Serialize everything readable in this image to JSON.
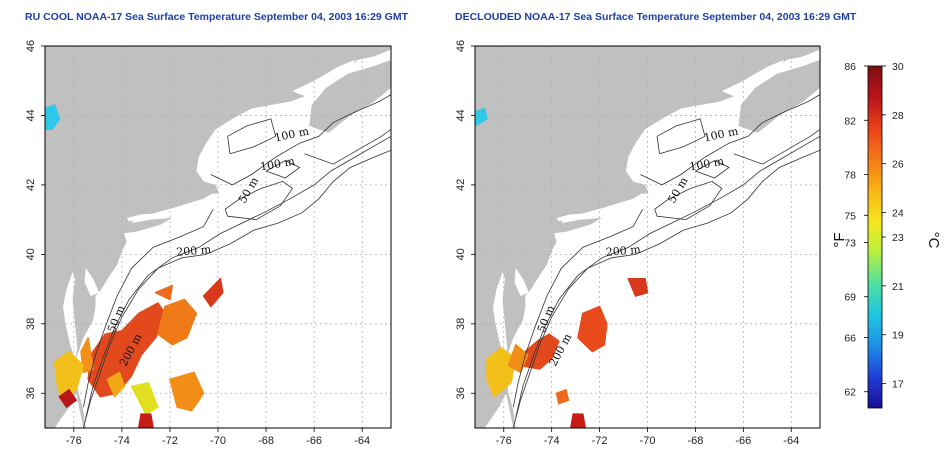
{
  "titles": {
    "left": "RU COOL NOAA-17 Sea Surface Temperature September 04, 2003 16:29 GMT",
    "right": "DECLOUDED NOAA-17 Sea Surface Temperature September 04, 2003 16:29 GMT"
  },
  "map": {
    "lon_range": [
      -77.2,
      -62.8
    ],
    "lat_range": [
      35,
      46
    ],
    "lon_ticks": [
      -76,
      -74,
      -72,
      -70,
      -68,
      -66,
      -64
    ],
    "lat_ticks": [
      36,
      38,
      40,
      42,
      44,
      46
    ],
    "land_color": "#c0c0c0",
    "grid": true,
    "contour_labels": [
      "100 m",
      "100 m",
      "50 m",
      "200 m",
      "50 m",
      "200 m"
    ]
  },
  "colorbar": {
    "celsius_min": 16,
    "celsius_max": 30,
    "fahrenheit_ticks": [
      "86",
      "82",
      "78",
      "75",
      "73",
      "69",
      "66",
      "62"
    ],
    "celsius_ticks": [
      "30",
      "28",
      "26",
      "24",
      "23",
      "21",
      "19",
      "17"
    ],
    "fahrenheit_unit": "°F",
    "celsius_unit": "°C",
    "colors": [
      "#1a0f8f",
      "#1f3fd8",
      "#1d8fe8",
      "#1ec7e0",
      "#4fe0a0",
      "#b8f040",
      "#f6e81e",
      "#f8b418",
      "#f57a16",
      "#e8421a",
      "#b8141a",
      "#7e0f12"
    ]
  }
}
